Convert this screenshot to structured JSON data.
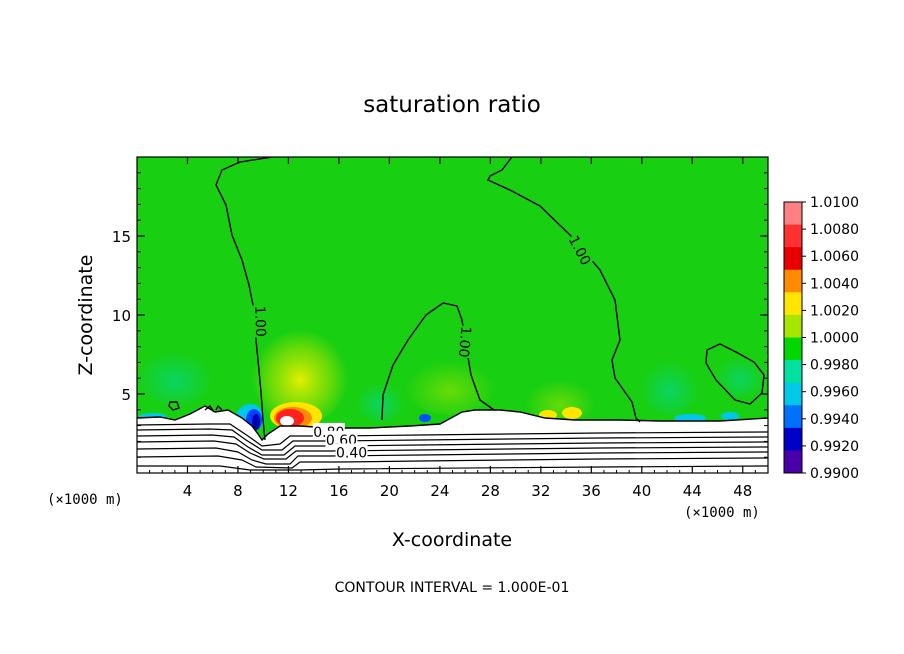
{
  "chart_data": {
    "type": "heatmap",
    "title": "saturation ratio",
    "xlabel": "X-coordinate",
    "ylabel": "Z-coordinate",
    "x_unit_left": "(×1000 m)",
    "x_unit_right": "(×1000 m)",
    "footer": "CONTOUR INTERVAL = 1.000E-01",
    "xlim": [
      0,
      50
    ],
    "ylim": [
      0,
      20
    ],
    "xticks": [
      4,
      8,
      12,
      16,
      20,
      24,
      28,
      32,
      36,
      40,
      44,
      48
    ],
    "yticks": [
      5,
      10,
      15
    ],
    "colorbar": {
      "levels": [
        "1.0100",
        "1.0080",
        "1.0060",
        "1.0040",
        "1.0020",
        "1.0000",
        "0.9980",
        "0.9960",
        "0.9940",
        "0.9920",
        "0.9900"
      ],
      "colors": [
        "#ff8080",
        "#ff3030",
        "#e80000",
        "#ff8c00",
        "#ffe600",
        "#a8e600",
        "#00d800",
        "#00e0a0",
        "#00c8e8",
        "#0070ff",
        "#0000c8",
        "#4a00a8"
      ]
    },
    "background_value_color": "#19cf12",
    "contour_labels": [
      {
        "text": "1.00",
        "x": 9.8,
        "y": 9.6,
        "rotate": 88
      },
      {
        "text": "1.00",
        "x": 26.0,
        "y": 8.3,
        "rotate": 95
      },
      {
        "text": "1.00",
        "x": 35.1,
        "y": 14.1,
        "rotate": 62
      },
      {
        "text": "0.80",
        "x": 15.2,
        "y": 2.6,
        "rotate": 0
      },
      {
        "text": "0.60",
        "x": 16.2,
        "y": 2.1,
        "rotate": 0
      },
      {
        "text": "0.40",
        "x": 17.0,
        "y": 1.3,
        "rotate": 0
      }
    ]
  }
}
